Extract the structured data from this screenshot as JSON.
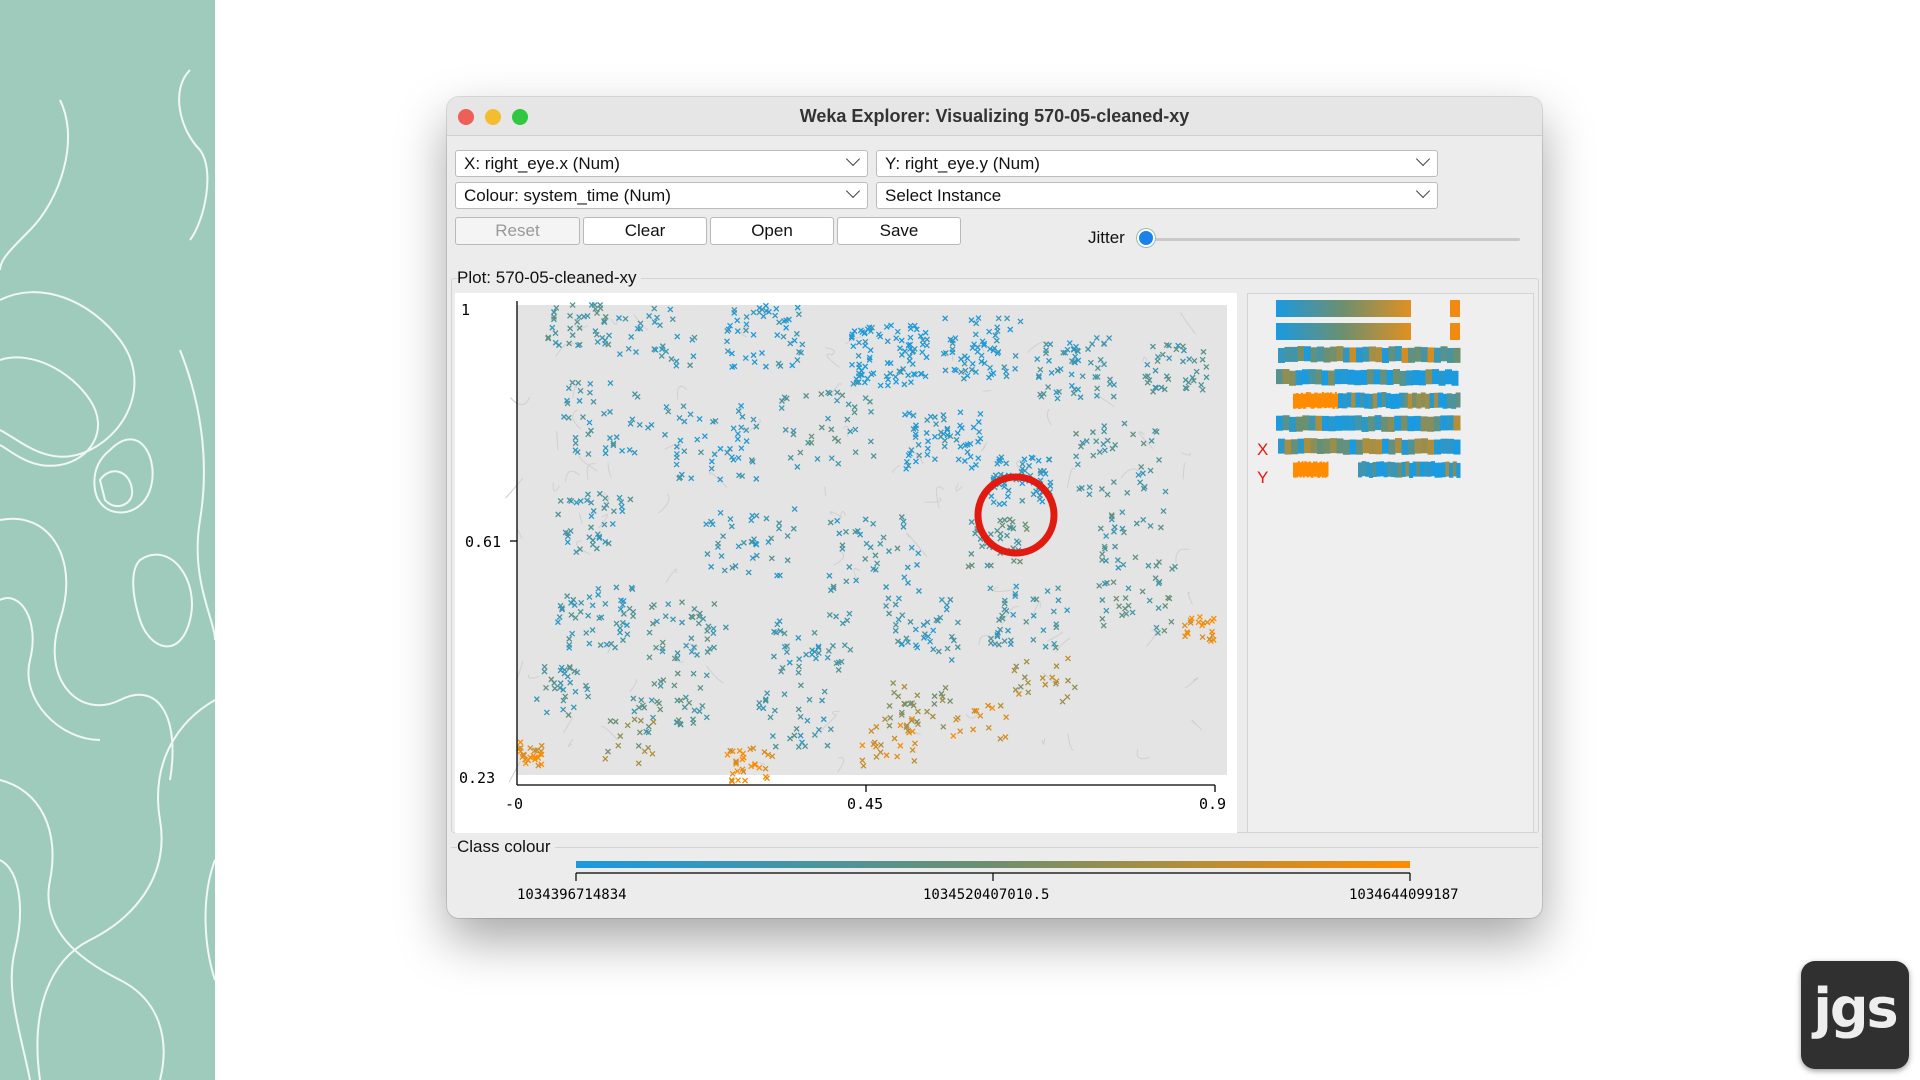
{
  "window": {
    "title": "Weka Explorer: Visualizing 570-05-cleaned-xy"
  },
  "controls": {
    "x_axis": "X: right_eye.x (Num)",
    "y_axis": "Y: right_eye.y (Num)",
    "colour": "Colour: system_time (Num)",
    "instance": "Select Instance",
    "buttons": {
      "reset": "Reset",
      "clear": "Clear",
      "open": "Open",
      "save": "Save"
    },
    "jitter_label": "Jitter",
    "jitter_value": 0
  },
  "plot": {
    "label": "Plot: 570-05-cleaned-xy",
    "y_ticks": [
      "1",
      "0.61",
      "0.23"
    ],
    "x_ticks": [
      "-0",
      "0.45",
      "0.9"
    ]
  },
  "attribute_panel": {
    "x_marker": "X",
    "y_marker": "Y"
  },
  "class_colour": {
    "label": "Class colour",
    "ticks": [
      "1034396714834",
      "1034520407010.5",
      "1034644099187"
    ],
    "color_low": "#1a9ae0",
    "color_mid": "#6e8f6e",
    "color_high": "#ff8c00"
  },
  "chart_data": {
    "type": "scatter",
    "xlabel": "right_eye.x",
    "ylabel": "right_eye.y",
    "xlim": [
      0,
      0.9
    ],
    "ylim": [
      0.23,
      1
    ],
    "color_by": "system_time",
    "colorbar_range": [
      1034396714834,
      1034644099187
    ],
    "highlight": "red-circle"
  },
  "badge": {
    "text": "jgs"
  }
}
